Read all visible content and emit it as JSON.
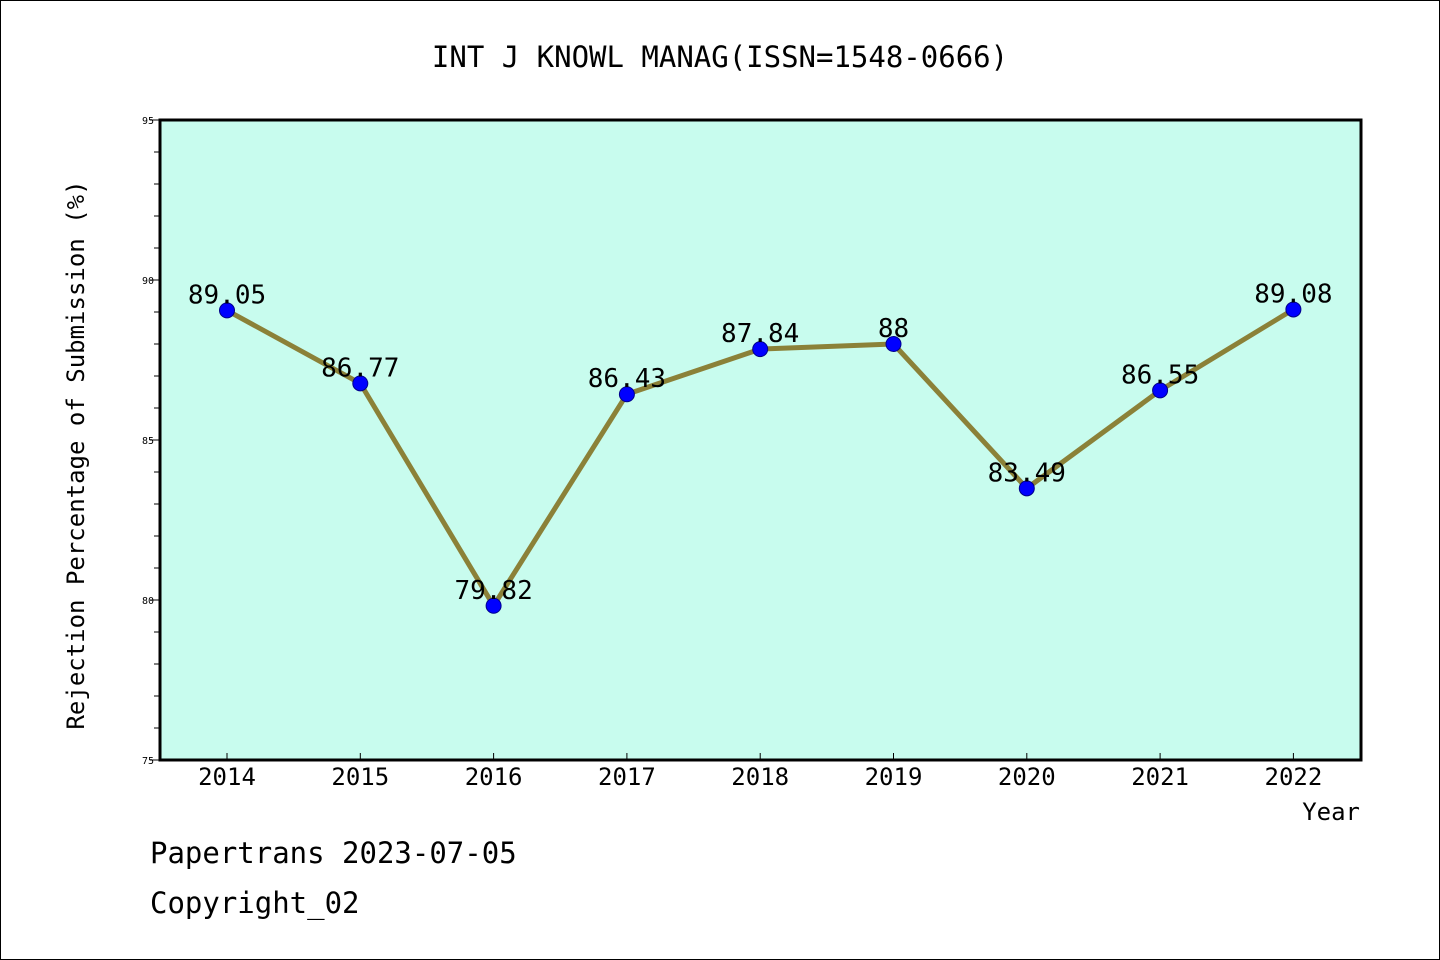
{
  "chart_data": {
    "type": "line",
    "title": "INT J KNOWL MANAG(ISSN=1548-0666)",
    "xlabel": "Year",
    "ylabel": "Rejection Percentage of Submission (%)",
    "categories": [
      "2014",
      "2015",
      "2016",
      "2017",
      "2018",
      "2019",
      "2020",
      "2021",
      "2022"
    ],
    "series": [
      {
        "values": [
          89.05,
          86.77,
          79.82,
          86.43,
          87.84,
          88,
          83.49,
          86.55,
          89.08
        ],
        "labels": [
          "89.05",
          "86.77",
          "79.82",
          "86.43",
          "87.84",
          "88",
          "83.49",
          "86.55",
          "89.08"
        ]
      }
    ],
    "ylim": [
      75,
      95
    ],
    "yticks": [
      "75",
      "80",
      "85",
      "90",
      "95"
    ],
    "grid": false,
    "colors": {
      "plot_background": "#c8fcee",
      "line": "#8b8138",
      "marker": "#0000ff"
    }
  },
  "footer": {
    "line1": "Papertrans 2023-07-05",
    "line2": "Copyright_02"
  }
}
